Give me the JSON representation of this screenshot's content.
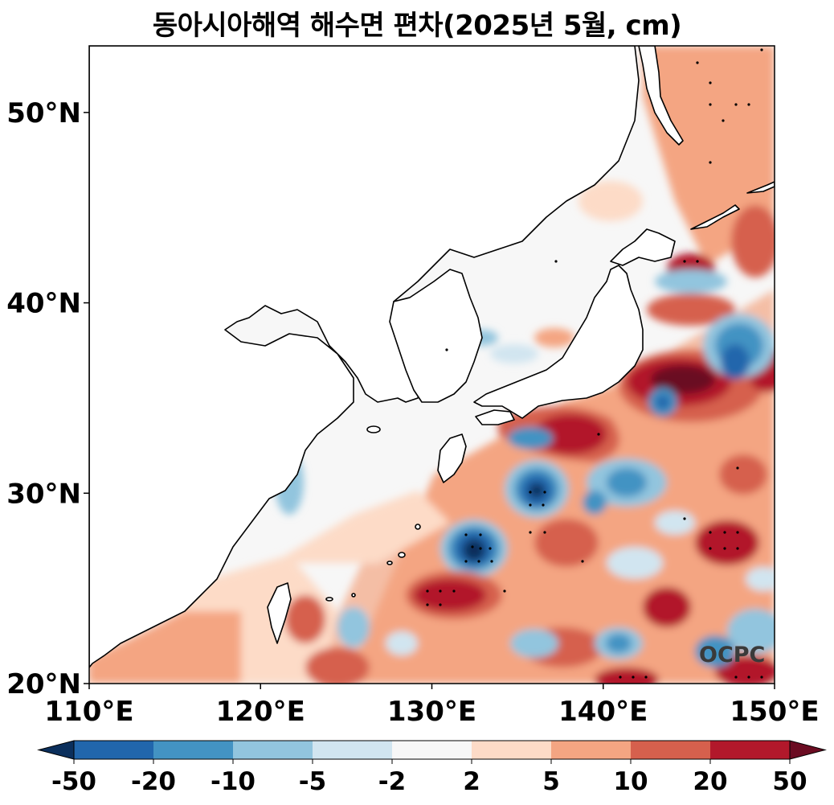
{
  "title": "동아시아해역 해수면 편차(2025년 5월, cm)",
  "watermark": "OCPC",
  "map": {
    "lon_range": [
      110,
      150
    ],
    "lat_range": [
      20,
      53.5
    ],
    "lat_ticks": [
      {
        "label": "50°N",
        "lat": 50
      },
      {
        "label": "40°N",
        "lat": 40
      },
      {
        "label": "30°N",
        "lat": 30
      },
      {
        "label": "20°N",
        "lat": 20
      }
    ],
    "lon_ticks": [
      {
        "label": "110°E",
        "lon": 110
      },
      {
        "label": "120°E",
        "lon": 120
      },
      {
        "label": "130°E",
        "lon": 130
      },
      {
        "label": "140°E",
        "lon": 140
      },
      {
        "label": "150°E",
        "lon": 150
      }
    ]
  },
  "colorbar": {
    "labels": [
      "-50",
      "-20",
      "-10",
      "-5",
      "-2",
      "2",
      "5",
      "10",
      "20",
      "50"
    ],
    "extend_low_color": "#0b2f5c",
    "extend_high_color": "#6b0c22",
    "colors": [
      "#2166ac",
      "#4393c3",
      "#92c5de",
      "#d1e5f0",
      "#f7f7f7",
      "#fddbc7",
      "#f4a582",
      "#d6604d",
      "#b2182b"
    ]
  },
  "palette": {
    "land": "#ffffff",
    "base_sea": "#f7f7f7",
    "coast": "#000000"
  }
}
